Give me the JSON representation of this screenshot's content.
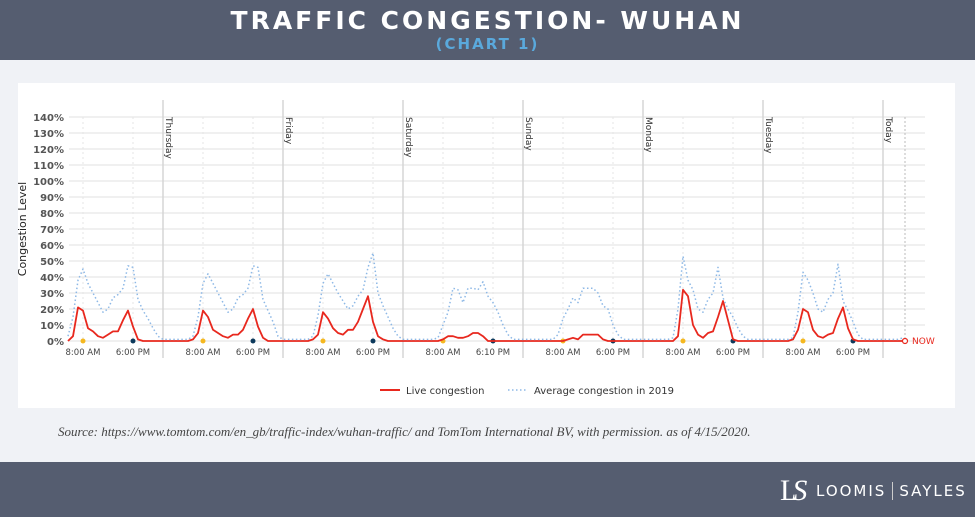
{
  "header": {
    "title": "TRAFFIC CONGESTION- WUHAN",
    "subtitle": "(CHART 1)"
  },
  "source": "Source: https://www.tomtom.com/en_gb/traffic-index/wuhan-traffic/ and TomTom International BV, with permission. as of 4/15/2020.",
  "footer": {
    "brand_left": "LOOMIS",
    "brand_right": "SAYLES",
    "monogram": "LS"
  },
  "chart_data": {
    "type": "line",
    "ylabel": "Congestion Level",
    "ylim": [
      0,
      140
    ],
    "yticks": [
      "0%",
      "10%",
      "20%",
      "30%",
      "40%",
      "50%",
      "60%",
      "70%",
      "80%",
      "90%",
      "100%",
      "110%",
      "120%",
      "130%",
      "140%"
    ],
    "grid": true,
    "legend_placement": "bottom",
    "day_labels": [
      "",
      "Thursday",
      "Friday",
      "Saturday",
      "Sunday",
      "Monday",
      "Tuesday",
      "Today"
    ],
    "time_tick_labels": [
      "8:00 AM",
      "6:00 PM"
    ],
    "saturday_pm_label": "6:10 PM",
    "now_label": "NOW",
    "first_day_start_hour": 5,
    "colors": {
      "live": "#e8281e",
      "average": "#8db8e6",
      "morning_dot": "#f5b820",
      "evening_dot": "#0d3a5c"
    },
    "series": [
      {
        "name": "Live congestion",
        "days": [
          [
            0,
            3,
            21,
            19,
            8,
            6,
            3,
            2,
            4,
            6,
            6,
            13,
            19,
            9,
            1,
            0,
            0,
            0,
            0
          ],
          [
            0,
            0,
            0,
            0,
            0,
            0,
            1,
            5,
            19,
            15,
            7,
            5,
            3,
            2,
            4,
            4,
            7,
            14,
            20,
            9,
            2,
            0,
            0,
            0
          ],
          [
            0,
            0,
            0,
            0,
            0,
            0,
            1,
            4,
            18,
            14,
            8,
            5,
            4,
            7,
            7,
            12,
            20,
            28,
            12,
            3,
            1,
            0,
            0,
            0
          ],
          [
            0,
            0,
            0,
            0,
            0,
            0,
            0,
            0,
            1,
            3,
            3,
            2,
            2,
            3,
            5,
            5,
            3,
            0,
            0,
            0,
            0,
            0,
            0,
            0
          ],
          [
            0,
            0,
            0,
            0,
            0,
            0,
            0,
            0,
            0,
            1,
            2,
            1,
            4,
            4,
            4,
            4,
            1,
            0,
            0,
            0,
            0,
            0,
            0,
            0
          ],
          [
            0,
            0,
            0,
            0,
            0,
            0,
            0,
            3,
            32,
            28,
            10,
            4,
            2,
            5,
            6,
            15,
            25,
            13,
            1,
            0,
            0,
            0,
            0,
            0
          ],
          [
            0,
            0,
            0,
            0,
            0,
            0,
            1,
            7,
            20,
            18,
            7,
            3,
            2,
            4,
            5,
            14,
            21,
            8,
            1,
            0,
            0,
            0,
            0,
            0
          ],
          [
            0,
            0,
            0,
            0,
            0
          ]
        ]
      },
      {
        "name": "Average congestion in 2019",
        "days": [
          [
            3,
            15,
            38,
            45,
            36,
            30,
            24,
            18,
            20,
            27,
            29,
            33,
            47,
            46,
            26,
            19,
            14,
            8,
            3
          ],
          [
            1,
            1,
            1,
            1,
            1,
            1,
            3,
            15,
            36,
            42,
            36,
            30,
            24,
            18,
            20,
            27,
            29,
            33,
            47,
            46,
            26,
            19,
            12,
            3
          ],
          [
            1,
            1,
            1,
            1,
            1,
            1,
            3,
            16,
            36,
            42,
            36,
            30,
            25,
            20,
            22,
            28,
            32,
            46,
            55,
            30,
            22,
            15,
            8,
            3
          ],
          [
            1,
            1,
            1,
            1,
            1,
            1,
            1,
            2,
            10,
            18,
            33,
            32,
            24,
            33,
            33,
            32,
            37,
            28,
            24,
            18,
            10,
            4,
            1,
            1
          ],
          [
            1,
            1,
            1,
            1,
            1,
            1,
            1,
            4,
            14,
            20,
            27,
            24,
            33,
            33,
            33,
            30,
            22,
            20,
            10,
            4,
            1,
            1,
            1,
            1
          ],
          [
            1,
            1,
            1,
            1,
            1,
            1,
            2,
            20,
            53,
            38,
            32,
            20,
            18,
            26,
            30,
            46,
            27,
            20,
            15,
            8,
            3,
            1,
            1,
            1
          ],
          [
            1,
            1,
            1,
            1,
            1,
            1,
            2,
            18,
            43,
            38,
            30,
            20,
            18,
            26,
            30,
            48,
            25,
            19,
            12,
            4,
            1,
            1,
            1,
            1
          ],
          [
            1,
            1,
            1,
            1,
            2
          ]
        ]
      }
    ]
  }
}
